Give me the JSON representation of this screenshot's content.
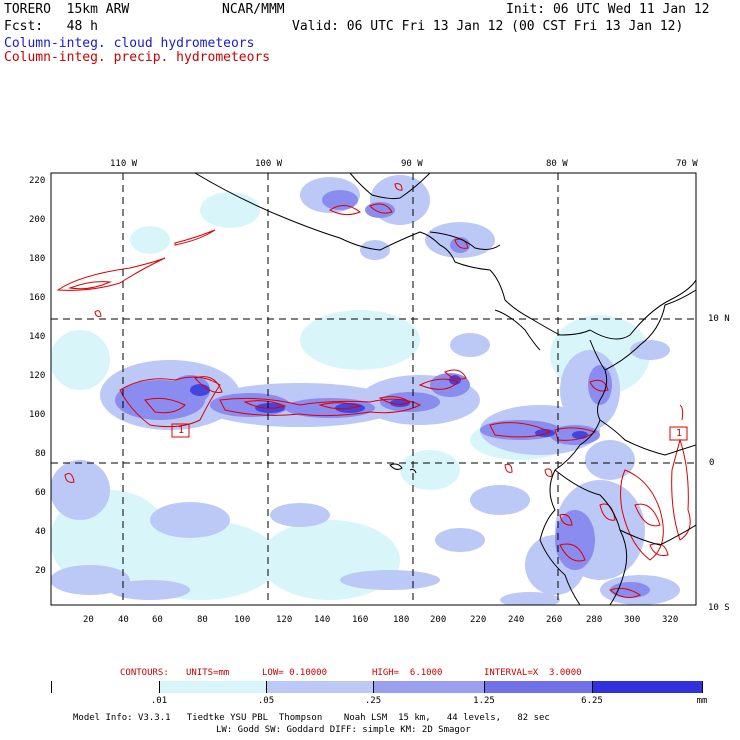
{
  "header": {
    "model": "TORERO  15km ARW",
    "org": "NCAR/MMM",
    "init": "Init: 06 UTC Wed 11 Jan 12",
    "fcst": "Fcst:   48 h",
    "valid": "Valid: 06 UTC Fri 13 Jan 12 (00 CST Fri 13 Jan 12)",
    "legend_cloud": "Column-integ. cloud hydrometeors",
    "legend_precip": "Column-integ. precip. hydrometeors"
  },
  "map": {
    "lon_labels": [
      "110 W",
      "100 W",
      "90 W",
      "80 W",
      "70 W"
    ],
    "lat_labels": [
      "10 N",
      "0",
      "10 S"
    ],
    "y_ticks": [
      "220",
      "200",
      "180",
      "160",
      "140",
      "120",
      "100",
      "80",
      "60",
      "40",
      "20"
    ],
    "x_ticks": [
      "20",
      "40",
      "60",
      "80",
      "100",
      "120",
      "140",
      "160",
      "180",
      "200",
      "220",
      "240",
      "260",
      "280",
      "300",
      "320"
    ],
    "contour_marks": [
      "1",
      "1"
    ],
    "colors": {
      "land_line": "#000000",
      "precip_contour": "#dd0000",
      "grid": "#000000"
    }
  },
  "contours_text": {
    "label": "CONTOURS:",
    "units": "UNITS=mm",
    "low": "LOW= 0.10000",
    "high": "HIGH=  6.1000",
    "interval": "INTERVAL=X  3.0000"
  },
  "colorbar": {
    "labels": [
      ".01",
      ".05",
      ".25",
      "1.25",
      "6.25",
      "mm"
    ],
    "colors": [
      "#ffffff",
      "#d8f6fa",
      "#bcc8f5",
      "#9aa0ef",
      "#7070e8",
      "#4040e0",
      "#2020dd"
    ]
  },
  "footer": {
    "line1": "Model Info: V3.3.1   Tiedtke YSU PBL  Thompson    Noah LSM  15 km,   44 levels,   82 sec",
    "line2": "LW: Godd SW: Goddard DIFF: simple KM: 2D Smagor"
  }
}
